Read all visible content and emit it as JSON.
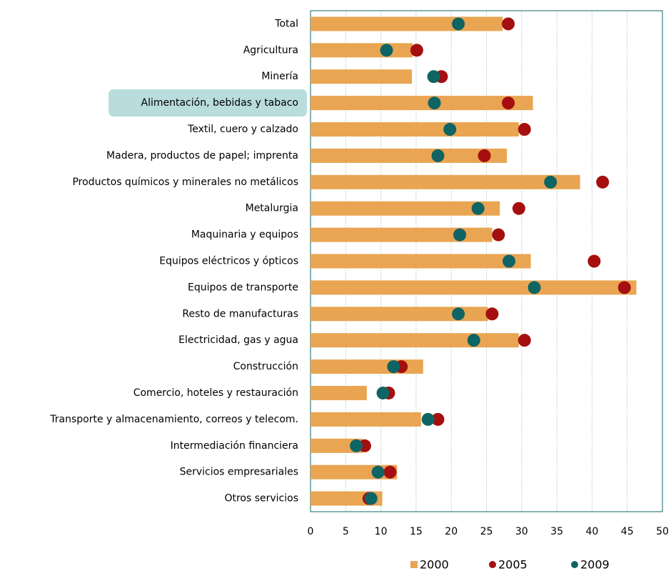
{
  "chart_data": {
    "type": "bar",
    "categories": [
      "Total",
      "Agricultura",
      "Minería",
      "Alimentación, bebidas y tabaco",
      "Textil, cuero y calzado",
      "Madera, productos de papel; imprenta",
      "Productos químicos y minerales no metálicos",
      "Metalurgia",
      "Maquinaria y equipos",
      "Equipos eléctricos y ópticos",
      "Equipos de transporte",
      "Resto de manufacturas",
      "Electricidad, gas y agua",
      "Construcción",
      "Comercio, hoteles y restauración",
      "Transporte y almacenamiento, correos y telecom.",
      "Intermediación financiera",
      "Servicios empresariales",
      "Otros servicios"
    ],
    "series": [
      {
        "name": "2000",
        "color": "#e9a552",
        "values": [
          27.3,
          14.5,
          14.4,
          31.6,
          29.6,
          27.9,
          38.3,
          26.9,
          25.8,
          31.3,
          46.3,
          25.2,
          29.6,
          16.0,
          8.0,
          15.7,
          7.4,
          12.3,
          10.2
        ]
      },
      {
        "name": "2005",
        "color": "#a50f0f",
        "values": [
          28.1,
          15.1,
          18.6,
          28.1,
          30.4,
          24.7,
          41.5,
          29.6,
          26.7,
          40.3,
          44.6,
          25.8,
          30.4,
          12.9,
          11.1,
          18.1,
          7.7,
          11.3,
          8.3
        ]
      },
      {
        "name": "2009",
        "color": "#0f6464",
        "values": [
          21.0,
          10.8,
          17.5,
          17.6,
          19.8,
          18.1,
          34.1,
          23.8,
          21.2,
          28.2,
          31.8,
          21.0,
          23.2,
          11.8,
          10.3,
          16.7,
          6.5,
          9.6,
          8.6
        ]
      }
    ],
    "xlim": [
      0,
      50
    ],
    "xticks": [
      0,
      5,
      10,
      15,
      20,
      25,
      30,
      35,
      40,
      45,
      50
    ],
    "grid": true,
    "legend": "bottom"
  }
}
